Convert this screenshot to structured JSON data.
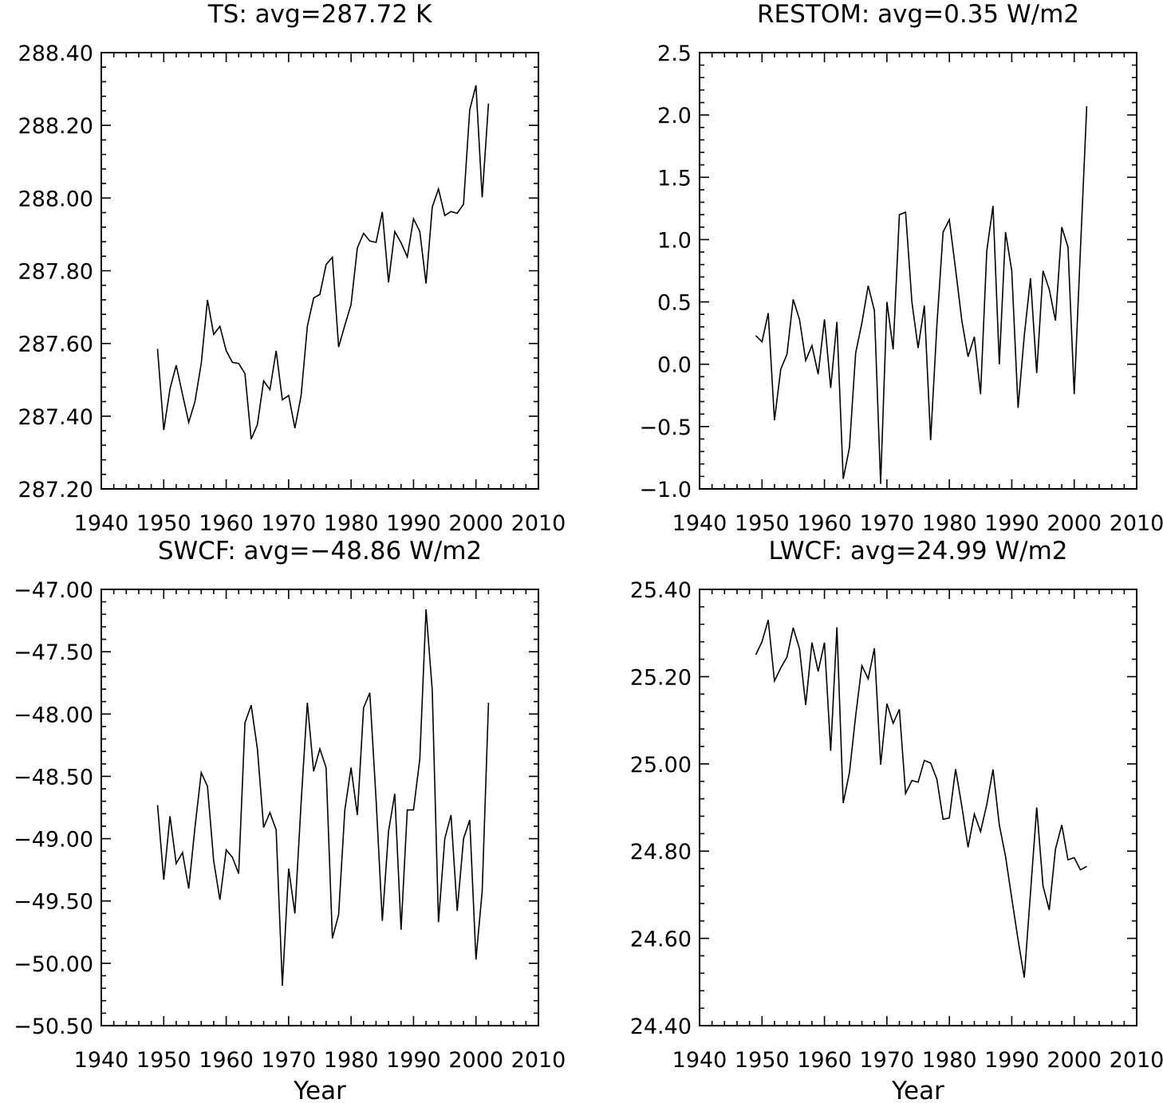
{
  "chart_data": [
    {
      "type": "line",
      "title": "TS: avg=287.72 K",
      "xlabel": "",
      "ylabel": "",
      "xlim": [
        1940,
        2010
      ],
      "ylim": [
        287.2,
        288.4
      ],
      "xticks": [
        1940,
        1950,
        1960,
        1970,
        1980,
        1990,
        2000,
        2010
      ],
      "xtick_labels": [
        "1940",
        "1950",
        "1960",
        "1970",
        "1980",
        "1990",
        "2000",
        "2010"
      ],
      "yticks": [
        287.2,
        287.4,
        287.6,
        287.8,
        288.0,
        288.2,
        288.4
      ],
      "ytick_labels": [
        "287.20",
        "287.40",
        "287.60",
        "287.80",
        "288.00",
        "288.20",
        "288.40"
      ],
      "x_start": 1949,
      "values": [
        287.585,
        287.362,
        287.475,
        287.54,
        287.46,
        287.383,
        287.44,
        287.545,
        287.72,
        287.625,
        287.647,
        287.58,
        287.548,
        287.545,
        287.517,
        287.337,
        287.377,
        287.497,
        287.473,
        287.58,
        287.445,
        287.457,
        287.367,
        287.457,
        287.647,
        287.725,
        287.735,
        287.817,
        287.837,
        287.59,
        287.65,
        287.707,
        287.863,
        287.903,
        287.882,
        287.878,
        287.962,
        287.768,
        287.908,
        287.877,
        287.838,
        287.943,
        287.908,
        287.765,
        287.975,
        288.025,
        287.952,
        287.963,
        287.958,
        287.983,
        288.243,
        288.31,
        288.002,
        288.26
      ]
    },
    {
      "type": "line",
      "title": "RESTOM: avg=0.35 W/m2",
      "xlabel": "",
      "ylabel": "",
      "xlim": [
        1940,
        2010
      ],
      "ylim": [
        -1.0,
        2.5
      ],
      "xticks": [
        1940,
        1950,
        1960,
        1970,
        1980,
        1990,
        2000,
        2010
      ],
      "xtick_labels": [
        "1940",
        "1950",
        "1960",
        "1970",
        "1980",
        "1990",
        "2000",
        "2010"
      ],
      "yticks": [
        -1.0,
        -0.5,
        0.0,
        0.5,
        1.0,
        1.5,
        2.0,
        2.5
      ],
      "ytick_labels": [
        "−1.0",
        "−0.5",
        "0.0",
        "0.5",
        "1.0",
        "1.5",
        "2.0",
        "2.5"
      ],
      "x_start": 1949,
      "values": [
        0.23,
        0.18,
        0.41,
        -0.45,
        -0.04,
        0.08,
        0.52,
        0.36,
        0.03,
        0.15,
        -0.08,
        0.36,
        -0.19,
        0.34,
        -0.92,
        -0.67,
        0.09,
        0.33,
        0.63,
        0.43,
        -0.96,
        0.5,
        0.12,
        1.2,
        1.22,
        0.5,
        0.13,
        0.47,
        -0.61,
        0.31,
        1.06,
        1.16,
        0.76,
        0.35,
        0.06,
        0.22,
        -0.24,
        0.91,
        1.27,
        0.0,
        1.06,
        0.75,
        -0.35,
        0.23,
        0.69,
        -0.07,
        0.75,
        0.6,
        0.35,
        1.1,
        0.94,
        -0.24,
        0.92,
        2.07
      ]
    },
    {
      "type": "line",
      "title": "SWCF: avg=−48.86 W/m2",
      "xlabel": "Year",
      "ylabel": "",
      "xlim": [
        1940,
        2010
      ],
      "ylim": [
        -50.5,
        -47.0
      ],
      "xticks": [
        1940,
        1950,
        1960,
        1970,
        1980,
        1990,
        2000,
        2010
      ],
      "xtick_labels": [
        "1940",
        "1950",
        "1960",
        "1970",
        "1980",
        "1990",
        "2000",
        "2010"
      ],
      "yticks": [
        -50.5,
        -50.0,
        -49.5,
        -49.0,
        -48.5,
        -48.0,
        -47.5,
        -47.0
      ],
      "ytick_labels": [
        "−50.50",
        "−50.00",
        "−49.50",
        "−49.00",
        "−48.50",
        "−48.00",
        "−47.50",
        "−47.00"
      ],
      "x_start": 1949,
      "values": [
        -48.73,
        -49.33,
        -48.82,
        -49.2,
        -49.11,
        -49.4,
        -48.91,
        -48.47,
        -48.58,
        -49.18,
        -49.49,
        -49.09,
        -49.15,
        -49.28,
        -48.07,
        -47.93,
        -48.28,
        -48.91,
        -48.79,
        -48.93,
        -50.18,
        -49.24,
        -49.6,
        -48.71,
        -47.91,
        -48.46,
        -48.28,
        -48.43,
        -49.8,
        -49.61,
        -48.77,
        -48.43,
        -48.81,
        -47.95,
        -47.83,
        -48.69,
        -49.66,
        -48.94,
        -48.64,
        -49.73,
        -48.77,
        -48.77,
        -48.36,
        -47.16,
        -47.81,
        -49.67,
        -49.0,
        -48.81,
        -49.58,
        -49.0,
        -48.85,
        -49.97,
        -49.42,
        -47.91
      ]
    },
    {
      "type": "line",
      "title": "LWCF: avg=24.99 W/m2",
      "xlabel": "Year",
      "ylabel": "",
      "xlim": [
        1940,
        2010
      ],
      "ylim": [
        24.4,
        25.4
      ],
      "xticks": [
        1940,
        1950,
        1960,
        1970,
        1980,
        1990,
        2000,
        2010
      ],
      "xtick_labels": [
        "1940",
        "1950",
        "1960",
        "1970",
        "1980",
        "1990",
        "2000",
        "2010"
      ],
      "yticks": [
        24.4,
        24.6,
        24.8,
        25.0,
        25.2,
        25.4
      ],
      "ytick_labels": [
        "24.40",
        "24.60",
        "24.80",
        "25.00",
        "25.20",
        "25.40"
      ],
      "x_start": 1949,
      "values": [
        25.25,
        25.28,
        25.33,
        25.19,
        25.22,
        25.245,
        25.312,
        25.264,
        25.135,
        25.278,
        25.212,
        25.278,
        25.03,
        25.313,
        24.91,
        24.98,
        25.11,
        25.225,
        25.195,
        25.265,
        24.998,
        25.138,
        25.093,
        25.125,
        24.932,
        24.962,
        24.958,
        25.008,
        25.002,
        24.965,
        24.873,
        24.876,
        24.988,
        24.903,
        24.809,
        24.885,
        24.845,
        24.907,
        24.987,
        24.86,
        24.788,
        24.692,
        24.597,
        24.51,
        24.705,
        24.9,
        24.72,
        24.665,
        24.805,
        24.86,
        24.78,
        24.785,
        24.757,
        24.765
      ]
    }
  ]
}
